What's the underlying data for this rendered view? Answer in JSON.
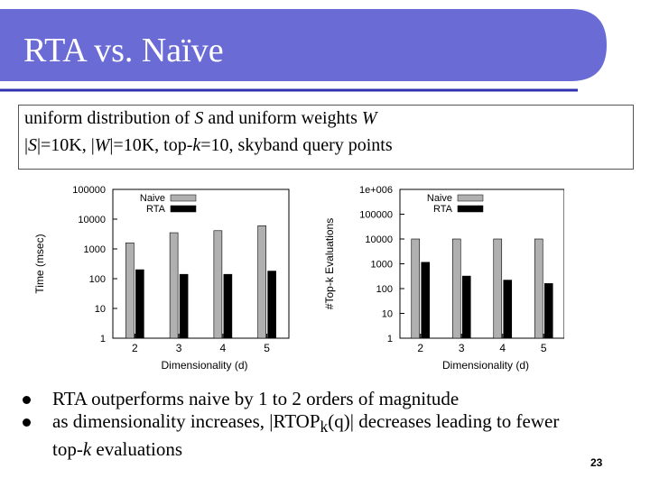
{
  "slide": {
    "title": "RTA vs. Naïve",
    "colors": {
      "title_bar": "#6b6bd6",
      "title_underline": "#3030b0",
      "title_text": "#ffffff"
    },
    "info_line1_parts": [
      "uniform distribution of ",
      "S",
      " and uniform weights ",
      "W"
    ],
    "info_line2_parts": [
      "|",
      "S",
      "|=10K, |",
      "W",
      "|=10K, top-",
      "k",
      "=10, skyband query points"
    ],
    "bullet1": "RTA outperforms naive by 1 to 2 orders of magnitude",
    "bullet2_parts": [
      "as dimensionality increases, |RTOP",
      "k",
      "(q)| decreases leading to fewer"
    ],
    "bullet2_line2_parts": [
      "top-",
      "k",
      " evaluations"
    ],
    "page_number": "23"
  },
  "chart_data": [
    {
      "type": "bar",
      "categories": [
        "2",
        "3",
        "4",
        "5"
      ],
      "series": [
        {
          "name": "Naive",
          "color": "#b0b0b0",
          "values": [
            1600,
            3500,
            4100,
            6000
          ]
        },
        {
          "name": "RTA",
          "color": "#000000",
          "values": [
            200,
            140,
            140,
            180
          ]
        }
      ],
      "xlabel": "Dimensionality (d)",
      "ylabel": "Time (msec)",
      "yscale": "log",
      "ylim": [
        1,
        100000
      ],
      "yticks": [
        "1",
        "10",
        "100",
        "1000",
        "10000",
        "100000"
      ],
      "legend": "top-left",
      "grid": false
    },
    {
      "type": "bar",
      "categories": [
        "2",
        "3",
        "4",
        "5"
      ],
      "series": [
        {
          "name": "Naive",
          "color": "#b0b0b0",
          "values": [
            10000,
            10000,
            10000,
            10000
          ]
        },
        {
          "name": "RTA",
          "color": "#000000",
          "values": [
            1150,
            320,
            220,
            160
          ]
        }
      ],
      "xlabel": "Dimensionality (d)",
      "ylabel": "#Top-k Evaluations",
      "yscale": "log",
      "ylim": [
        1,
        1000000
      ],
      "yticks": [
        "1",
        "10",
        "100",
        "1000",
        "10000",
        "100000",
        "1e+006"
      ],
      "legend": "top-left",
      "grid": false
    }
  ]
}
